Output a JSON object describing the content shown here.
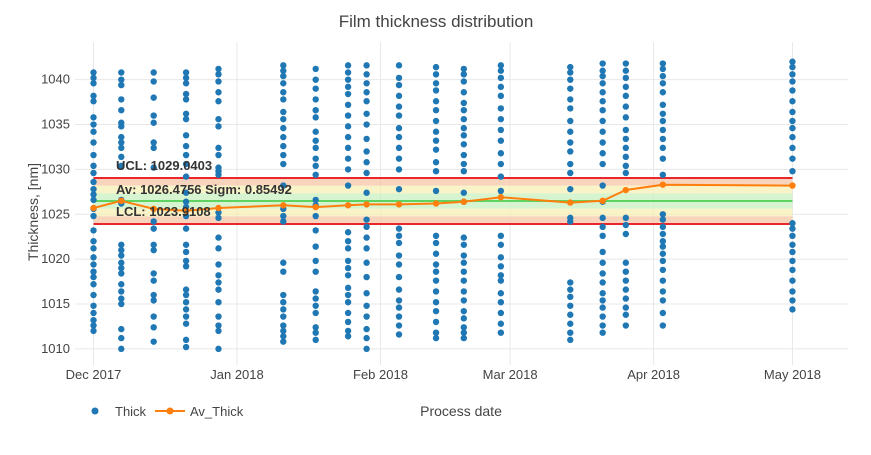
{
  "chart_data": {
    "type": "scatter",
    "title": "Film thickness distribution",
    "xlabel": "Process date",
    "ylabel": "Thickness, [nm]",
    "x_type": "date",
    "xlim": [
      "2017-11-27",
      "2018-05-13"
    ],
    "ylim": [
      1008.2,
      1044.2
    ],
    "grid": true,
    "legend_position": "bottom-left",
    "x_ticks": [
      {
        "date": "2017-12-01",
        "label": "Dec 2017"
      },
      {
        "date": "2018-01-01",
        "label": "Jan 2018"
      },
      {
        "date": "2018-02-01",
        "label": "Feb 2018"
      },
      {
        "date": "2018-03-01",
        "label": "Mar 2018"
      },
      {
        "date": "2018-04-01",
        "label": "Apr 2018"
      },
      {
        "date": "2018-05-01",
        "label": "May 2018"
      }
    ],
    "y_ticks": [
      1010,
      1015,
      1020,
      1025,
      1030,
      1035,
      1040
    ],
    "limits": {
      "ucl": 1029.0403,
      "average": 1026.4756,
      "sigma": 0.85492,
      "lcl": 1023.9108,
      "ucl_label": "UCL: 1029.0403",
      "average_label": "Av: 1026.4756 Sigm: 0.85492",
      "lcl_label": "LCL: 1023.9108"
    },
    "colors": {
      "thick": "#1f77b4",
      "av_thick": "#ff7f0e",
      "limit_line": "#e8262b",
      "average_line": "#5fd35f",
      "outer_band": "#f5c6a7",
      "middle_band": "#f7f0b5",
      "inner_band": "#c9f0c0",
      "grid": "#e8e8e8",
      "text": "#444444"
    },
    "series": [
      {
        "name": "Thick",
        "mode": "markers",
        "points": [
          {
            "date": "2017-12-01",
            "values": [
              1040.8,
              1040.2,
              1039.6,
              1038.2,
              1037.6,
              1035.8,
              1035.0,
              1034.2,
              1033.0,
              1031.6,
              1030.4,
              1029.6,
              1028.6,
              1027.8,
              1027.2,
              1026.6,
              1025.6,
              1024.8,
              1023.2,
              1022.0,
              1021.2,
              1020.2,
              1019.4,
              1018.6,
              1018.0,
              1017.2,
              1016.0,
              1014.8,
              1014.0,
              1013.2,
              1012.6,
              1012.0
            ]
          },
          {
            "date": "2017-12-07",
            "values": [
              1040.8,
              1040.0,
              1039.4,
              1037.8,
              1036.6,
              1035.2,
              1034.8,
              1033.6,
              1033.0,
              1032.4,
              1031.4,
              1030.4,
              1026.6,
              1026.2,
              1021.6,
              1021.0,
              1020.4,
              1019.6,
              1019.0,
              1018.4,
              1017.2,
              1016.4,
              1015.6,
              1015.0,
              1012.2,
              1011.2,
              1010.0
            ]
          },
          {
            "date": "2017-12-14",
            "values": [
              1040.8,
              1039.8,
              1038.0,
              1036.0,
              1035.2,
              1033.0,
              1032.4,
              1030.2,
              1024.2,
              1023.4,
              1021.6,
              1021.0,
              1018.4,
              1017.6,
              1016.0,
              1015.4,
              1013.6,
              1012.4,
              1010.8
            ]
          },
          {
            "date": "2017-12-21",
            "values": [
              1040.8,
              1040.2,
              1039.6,
              1038.4,
              1037.8,
              1036.2,
              1035.6,
              1033.8,
              1032.6,
              1031.6,
              1030.6,
              1029.2,
              1027.4,
              1026.4,
              1025.8,
              1024.8,
              1023.4,
              1021.6,
              1020.8,
              1019.8,
              1019.2,
              1016.6,
              1016.0,
              1015.2,
              1014.4,
              1013.6,
              1012.8,
              1011.0,
              1010.2
            ]
          },
          {
            "date": "2017-12-28",
            "values": [
              1041.2,
              1040.6,
              1039.8,
              1038.6,
              1037.6,
              1035.6,
              1034.8,
              1032.4,
              1031.6,
              1030.2,
              1029.8,
              1029.4,
              1025.2,
              1024.6,
              1022.4,
              1021.2,
              1019.4,
              1018.2,
              1017.4,
              1016.6,
              1015.2,
              1013.6,
              1012.6,
              1012.0,
              1010.0
            ]
          },
          {
            "date": "2018-01-11",
            "values": [
              1041.6,
              1041.0,
              1040.4,
              1039.6,
              1038.6,
              1037.8,
              1036.4,
              1035.6,
              1034.6,
              1033.6,
              1032.6,
              1031.6,
              1030.6,
              1028.2,
              1025.6,
              1024.8,
              1024.2,
              1019.6,
              1018.6,
              1016.0,
              1015.2,
              1014.4,
              1013.6,
              1012.6,
              1012.0,
              1011.4,
              1010.8
            ]
          },
          {
            "date": "2018-01-18",
            "values": [
              1041.2,
              1040.0,
              1039.0,
              1037.8,
              1036.6,
              1035.8,
              1034.2,
              1033.2,
              1032.4,
              1031.2,
              1030.4,
              1029.4,
              1026.6,
              1026.0,
              1024.8,
              1023.2,
              1021.4,
              1019.8,
              1018.6,
              1016.4,
              1015.6,
              1014.8,
              1014.0,
              1012.4,
              1011.8,
              1011.0
            ]
          },
          {
            "date": "2018-01-25",
            "values": [
              1041.6,
              1040.8,
              1040.0,
              1039.2,
              1038.4,
              1037.2,
              1036.0,
              1034.8,
              1033.6,
              1032.4,
              1031.2,
              1030.0,
              1028.2,
              1023.0,
              1022.0,
              1021.2,
              1019.8,
              1019.0,
              1018.2,
              1016.8,
              1016.0,
              1015.2,
              1014.0,
              1013.0,
              1012.0,
              1011.4
            ]
          },
          {
            "date": "2018-01-29",
            "values": [
              1041.6,
              1040.6,
              1039.6,
              1038.6,
              1037.6,
              1036.2,
              1035.0,
              1033.4,
              1032.0,
              1030.8,
              1029.6,
              1027.4,
              1024.4,
              1023.6,
              1022.4,
              1021.2,
              1019.6,
              1018.0,
              1016.2,
              1014.8,
              1013.6,
              1012.2,
              1011.2,
              1010.0
            ]
          },
          {
            "date": "2018-02-05",
            "values": [
              1041.6,
              1040.2,
              1039.4,
              1038.2,
              1037.0,
              1036.0,
              1034.6,
              1033.6,
              1032.4,
              1031.2,
              1030.0,
              1027.8,
              1023.4,
              1022.6,
              1021.8,
              1020.4,
              1019.4,
              1018.0,
              1016.6,
              1015.4,
              1014.6,
              1013.6,
              1012.6,
              1011.6
            ]
          },
          {
            "date": "2018-02-13",
            "values": [
              1041.4,
              1040.6,
              1039.6,
              1038.8,
              1037.6,
              1036.6,
              1035.4,
              1034.2,
              1033.2,
              1032.2,
              1030.8,
              1029.8,
              1027.6,
              1022.6,
              1021.8,
              1020.6,
              1019.4,
              1018.6,
              1017.6,
              1016.4,
              1015.2,
              1014.2,
              1013.0,
              1011.8,
              1011.2
            ]
          },
          {
            "date": "2018-02-19",
            "values": [
              1041.2,
              1040.6,
              1039.8,
              1038.6,
              1037.4,
              1036.6,
              1035.6,
              1034.6,
              1033.8,
              1032.8,
              1031.6,
              1030.6,
              1029.8,
              1027.4,
              1026.4,
              1022.4,
              1021.6,
              1020.4,
              1019.6,
              1018.6,
              1017.6,
              1016.4,
              1015.4,
              1014.2,
              1013.4,
              1012.4,
              1011.8,
              1011.2
            ]
          },
          {
            "date": "2018-02-27",
            "values": [
              1041.6,
              1041.0,
              1040.2,
              1039.2,
              1038.2,
              1036.8,
              1035.6,
              1034.4,
              1033.2,
              1031.8,
              1030.6,
              1029.2,
              1027.6,
              1022.6,
              1021.6,
              1020.2,
              1019.2,
              1018.2,
              1017.6,
              1016.2,
              1015.2,
              1014.0,
              1012.8,
              1011.8
            ]
          },
          {
            "date": "2018-03-14",
            "values": [
              1041.4,
              1040.8,
              1040.0,
              1039.0,
              1037.8,
              1036.8,
              1035.4,
              1034.2,
              1033.0,
              1032.0,
              1030.6,
              1029.6,
              1027.8,
              1024.6,
              1024.2,
              1017.4,
              1016.6,
              1015.8,
              1014.8,
              1013.8,
              1012.8,
              1011.8,
              1011.0
            ]
          },
          {
            "date": "2018-03-21",
            "values": [
              1041.8,
              1041.0,
              1040.4,
              1039.6,
              1038.6,
              1037.6,
              1036.6,
              1035.4,
              1034.2,
              1033.0,
              1031.8,
              1030.6,
              1028.2,
              1026.4,
              1024.6,
              1023.6,
              1022.6,
              1020.8,
              1019.6,
              1018.4,
              1017.4,
              1016.2,
              1015.4,
              1014.6,
              1013.6,
              1012.6,
              1011.8
            ]
          },
          {
            "date": "2018-03-26",
            "values": [
              1041.8,
              1041.0,
              1040.2,
              1039.2,
              1038.2,
              1037.0,
              1035.8,
              1034.4,
              1033.4,
              1032.4,
              1031.4,
              1030.4,
              1029.6,
              1024.6,
              1023.8,
              1022.8,
              1019.6,
              1018.6,
              1017.6,
              1016.6,
              1015.6,
              1014.6,
              1013.8,
              1012.6
            ]
          },
          {
            "date": "2018-04-03",
            "values": [
              1041.8,
              1041.2,
              1040.4,
              1039.6,
              1038.6,
              1037.2,
              1036.2,
              1035.4,
              1034.4,
              1033.4,
              1032.4,
              1031.2,
              1029.4,
              1025.0,
              1024.4,
              1023.6,
              1022.8,
              1022.0,
              1021.4,
              1020.6,
              1019.8,
              1018.8,
              1017.6,
              1016.4,
              1015.4,
              1014.0,
              1012.6
            ]
          },
          {
            "date": "2018-05-01",
            "values": [
              1042.0,
              1041.4,
              1040.6,
              1039.8,
              1038.8,
              1037.6,
              1036.4,
              1035.4,
              1034.6,
              1033.6,
              1032.4,
              1031.2,
              1029.8,
              1024.0,
              1023.4,
              1022.6,
              1021.6,
              1020.8,
              1019.8,
              1018.8,
              1017.6,
              1016.4,
              1015.4,
              1014.4
            ]
          }
        ]
      },
      {
        "name": "Av_Thick",
        "mode": "lines+markers",
        "x": [
          "2017-12-01",
          "2017-12-07",
          "2017-12-14",
          "2017-12-21",
          "2017-12-28",
          "2018-01-11",
          "2018-01-18",
          "2018-01-25",
          "2018-01-29",
          "2018-02-05",
          "2018-02-13",
          "2018-02-19",
          "2018-02-27",
          "2018-03-14",
          "2018-03-21",
          "2018-03-26",
          "2018-04-03",
          "2018-05-01"
        ],
        "y": [
          1025.7,
          1026.5,
          1025.6,
          1025.4,
          1025.7,
          1026.0,
          1025.8,
          1026.0,
          1026.1,
          1026.1,
          1026.2,
          1026.4,
          1026.9,
          1026.3,
          1026.5,
          1027.7,
          1028.3,
          1028.2
        ]
      }
    ]
  }
}
